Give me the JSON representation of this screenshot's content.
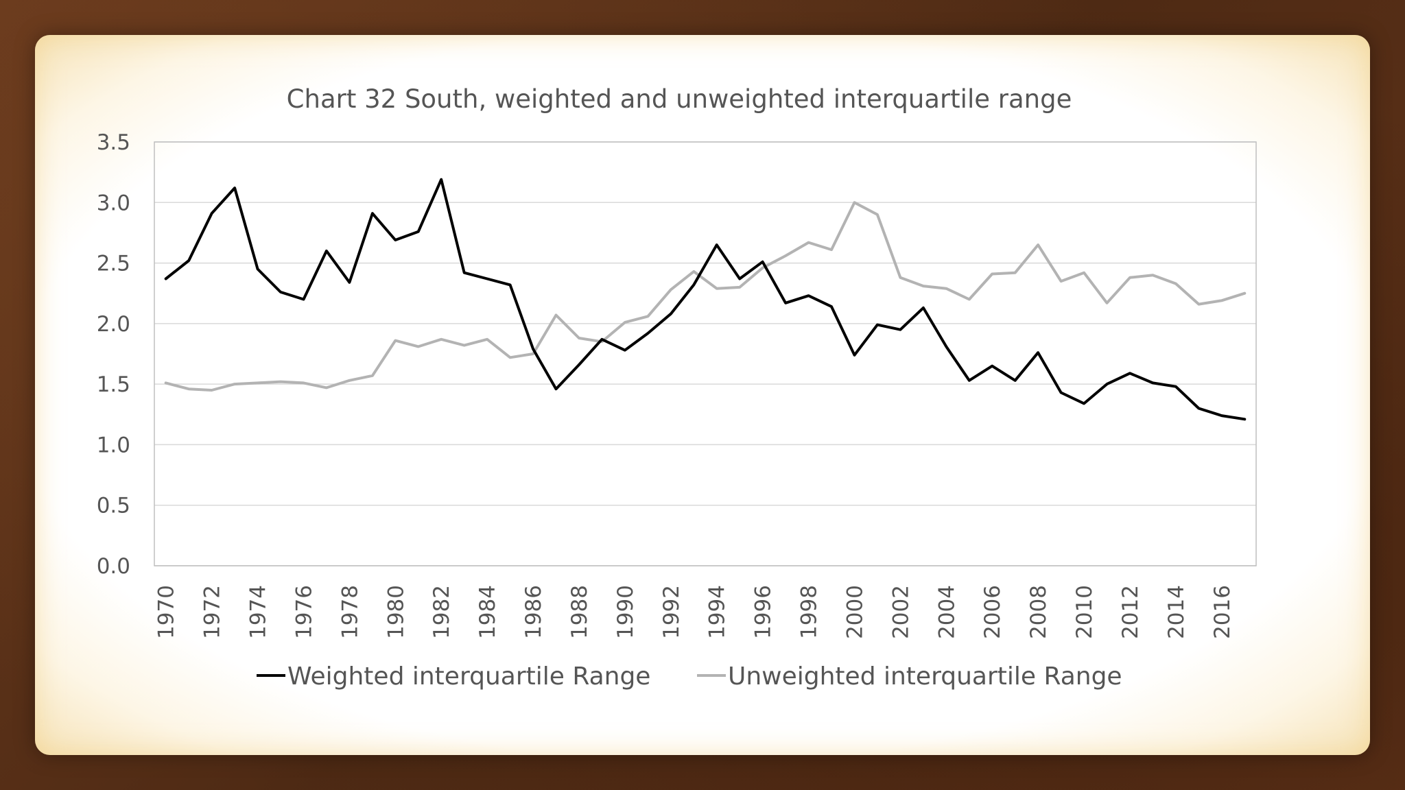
{
  "colors": {
    "background": "#5b3119",
    "panel": "#ffffff",
    "text": "#555555",
    "weighted": "#000000",
    "unweighted": "#b3b3b3",
    "grid": "#d9d9d9",
    "axis": "#bfbfbf"
  },
  "chart_data": {
    "type": "line",
    "title": "Chart 32 South, weighted and unweighted interquartile range",
    "xlabel": "",
    "ylabel": "",
    "ylim": [
      0,
      3.5
    ],
    "yticks": [
      "0.0",
      "0.5",
      "1.0",
      "1.5",
      "2.0",
      "2.5",
      "3.0",
      "3.5"
    ],
    "x": [
      1970,
      1971,
      1972,
      1973,
      1974,
      1975,
      1976,
      1977,
      1978,
      1979,
      1980,
      1981,
      1982,
      1983,
      1984,
      1985,
      1986,
      1987,
      1988,
      1989,
      1990,
      1991,
      1992,
      1993,
      1994,
      1995,
      1996,
      1997,
      1998,
      1999,
      2000,
      2001,
      2002,
      2003,
      2004,
      2005,
      2006,
      2007,
      2008,
      2009,
      2010,
      2011,
      2012,
      2013,
      2014,
      2015,
      2016,
      2017
    ],
    "xtick_labels": [
      "1970",
      "1972",
      "1974",
      "1976",
      "1978",
      "1980",
      "1982",
      "1984",
      "1986",
      "1988",
      "1990",
      "1992",
      "1994",
      "1996",
      "1998",
      "2000",
      "2002",
      "2004",
      "2006",
      "2008",
      "2010",
      "2012",
      "2014",
      "2016"
    ],
    "grid": true,
    "legend_position": "bottom",
    "series": [
      {
        "name": "Weighted interquartile Range",
        "values": [
          2.37,
          2.52,
          2.91,
          3.12,
          2.45,
          2.26,
          2.2,
          2.6,
          2.34,
          2.91,
          2.69,
          2.76,
          3.19,
          2.42,
          2.37,
          2.32,
          1.79,
          1.46,
          1.66,
          1.87,
          1.78,
          1.92,
          2.08,
          2.32,
          2.65,
          2.37,
          2.51,
          2.17,
          2.23,
          2.14,
          1.74,
          1.99,
          1.95,
          2.13,
          1.81,
          1.53,
          1.65,
          1.53,
          1.76,
          1.43,
          1.34,
          1.5,
          1.59,
          1.51,
          1.48,
          1.3,
          1.24,
          1.21
        ]
      },
      {
        "name": "Unweighted interquartile Range",
        "values": [
          1.51,
          1.46,
          1.45,
          1.5,
          1.51,
          1.52,
          1.51,
          1.47,
          1.53,
          1.57,
          1.86,
          1.81,
          1.87,
          1.82,
          1.87,
          1.72,
          1.75,
          2.07,
          1.88,
          1.85,
          2.01,
          2.06,
          2.28,
          2.43,
          2.29,
          2.3,
          2.46,
          2.56,
          2.67,
          2.61,
          3.0,
          2.9,
          2.38,
          2.31,
          2.29,
          2.2,
          2.41,
          2.42,
          2.65,
          2.35,
          2.42,
          2.17,
          2.38,
          2.4,
          2.33,
          2.16,
          2.19,
          2.25
        ]
      }
    ]
  }
}
